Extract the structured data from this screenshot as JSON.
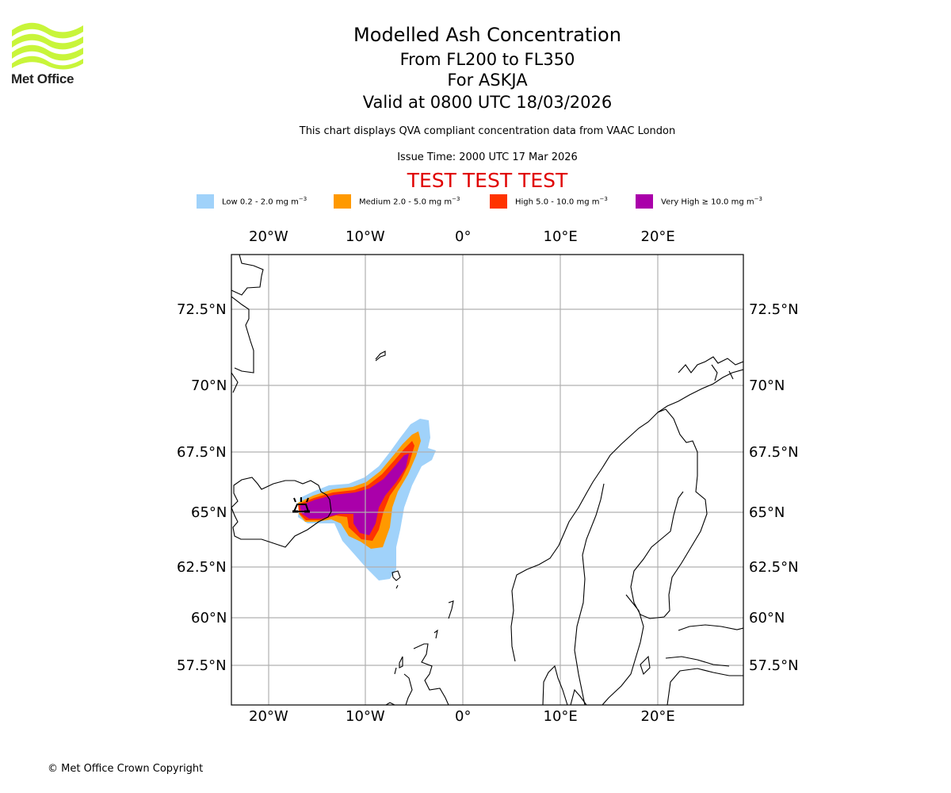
{
  "logo": {
    "text": "Met Office",
    "color": "#c8f53a"
  },
  "titles": {
    "main": "Modelled Ash Concentration",
    "levels": "From FL200 to FL350",
    "volcano": "For ASKJA",
    "valid": "Valid at 0800 UTC 18/03/2026"
  },
  "subtitle": "This chart displays QVA compliant concentration data from VAAC London",
  "issue_time": "Issue Time: 2000 UTC 17 Mar 2026",
  "test_banner": "TEST TEST TEST",
  "legend": [
    {
      "label": "Low 0.2 - 2.0 mg m",
      "color": "#a0d2fa"
    },
    {
      "label": "Medium 2.0 - 5.0 mg m",
      "color": "#ff9900"
    },
    {
      "label": "High 5.0 - 10.0 mg m",
      "color": "#ff3300"
    },
    {
      "label": "Very High ≥ 10.0 mg m",
      "color": "#aa00aa"
    }
  ],
  "legend_unit_exponent": "−3",
  "axes": {
    "lon_labels": [
      "20°W",
      "10°W",
      "0°",
      "10°E",
      "20°E"
    ],
    "lat_labels": [
      "72.5°N",
      "70°N",
      "67.5°N",
      "65°N",
      "62.5°N",
      "60°N",
      "57.5°N"
    ],
    "lon_values": [
      -20,
      -10,
      0,
      10,
      20
    ],
    "lat_values": [
      72.5,
      70,
      67.5,
      65,
      62.5,
      60,
      57.5
    ]
  },
  "volcano_marker": "volcano-icon",
  "footer": "© Met Office Crown Copyright",
  "colors": {
    "grid": "#b0b0b0",
    "coast": "#000000",
    "test": "#e00000"
  }
}
